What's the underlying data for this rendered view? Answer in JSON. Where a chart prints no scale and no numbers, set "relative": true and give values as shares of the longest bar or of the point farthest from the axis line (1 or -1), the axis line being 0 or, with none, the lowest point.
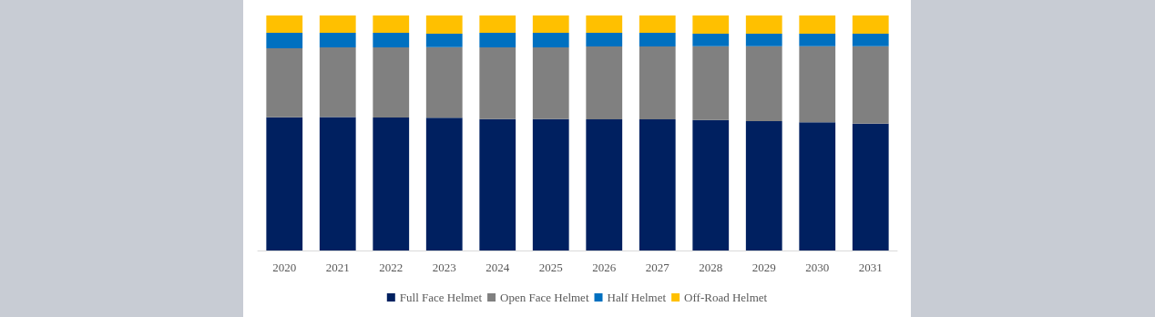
{
  "chart_data": {
    "type": "bar",
    "stacked": true,
    "relative": true,
    "legend": "bottom",
    "categories": [
      "2020",
      "2021",
      "2022",
      "2023",
      "2024",
      "2025",
      "2026",
      "2027",
      "2028",
      "2029",
      "2030",
      "2031"
    ],
    "series": [
      {
        "name": "Full Face Helmet",
        "color": "#002060",
        "values": [
          0.567,
          0.568,
          0.566,
          0.565,
          0.559,
          0.559,
          0.558,
          0.558,
          0.555,
          0.55,
          0.546,
          0.54
        ]
      },
      {
        "name": "Open Face Helmet",
        "color": "#808080",
        "values": [
          0.293,
          0.296,
          0.298,
          0.3,
          0.305,
          0.305,
          0.31,
          0.31,
          0.314,
          0.319,
          0.323,
          0.329
        ]
      },
      {
        "name": "Half Helmet",
        "color": "#0070c0",
        "values": [
          0.066,
          0.062,
          0.062,
          0.057,
          0.062,
          0.062,
          0.058,
          0.058,
          0.053,
          0.053,
          0.053,
          0.053
        ]
      },
      {
        "name": "Off-Road Helmet",
        "color": "#ffc000",
        "values": [
          0.074,
          0.074,
          0.074,
          0.078,
          0.074,
          0.074,
          0.074,
          0.074,
          0.078,
          0.078,
          0.078,
          0.078
        ]
      }
    ]
  }
}
